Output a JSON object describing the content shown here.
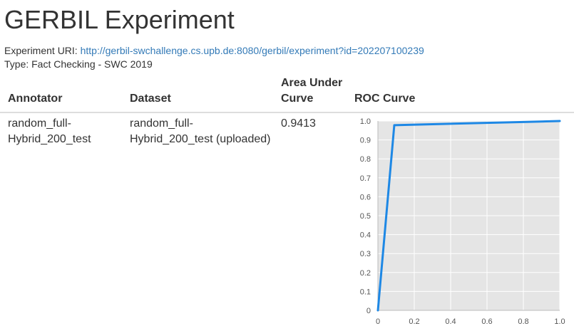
{
  "page": {
    "title": "GERBIL Experiment",
    "uri_label": "Experiment URI:",
    "uri_value": "http://gerbil-swchallenge.cs.upb.de:8080/gerbil/experiment?id=202207100239",
    "type_text": "Type: Fact Checking - SWC 2019"
  },
  "table": {
    "headers": {
      "annotator": "Annotator",
      "dataset": "Dataset",
      "auc_line1": "Area Under",
      "auc_line2": "Curve",
      "roc": "ROC Curve"
    },
    "row": {
      "annotator": "random_full-Hybrid_200_test",
      "dataset": "random_full-Hybrid_200_test (uploaded)",
      "auc": "0.9413"
    }
  },
  "chart_data": {
    "type": "line",
    "series": [
      {
        "x": [
          0,
          0.09,
          0.8,
          1.0
        ],
        "y": [
          0,
          0.978,
          0.995,
          1.0
        ],
        "color": "#1e88e5"
      }
    ],
    "xlim": [
      0,
      1
    ],
    "ylim": [
      0,
      1
    ],
    "x_ticks": [
      0,
      0.2,
      0.4,
      0.6,
      0.8,
      1.0
    ],
    "x_tick_labels": [
      "0",
      "0.2",
      "0.4",
      "0.6",
      "0.8",
      "1.0"
    ],
    "y_ticks": [
      0,
      0.1,
      0.2,
      0.3,
      0.4,
      0.5,
      0.6,
      0.7,
      0.8,
      0.9,
      1.0
    ],
    "y_tick_labels": [
      "0",
      "0.1",
      "0.2",
      "0.3",
      "0.4",
      "0.5",
      "0.6",
      "0.7",
      "0.8",
      "0.9",
      "1.0"
    ],
    "grid": true,
    "fill_color": "#e5e5e5",
    "grid_color": "#ffffff"
  }
}
